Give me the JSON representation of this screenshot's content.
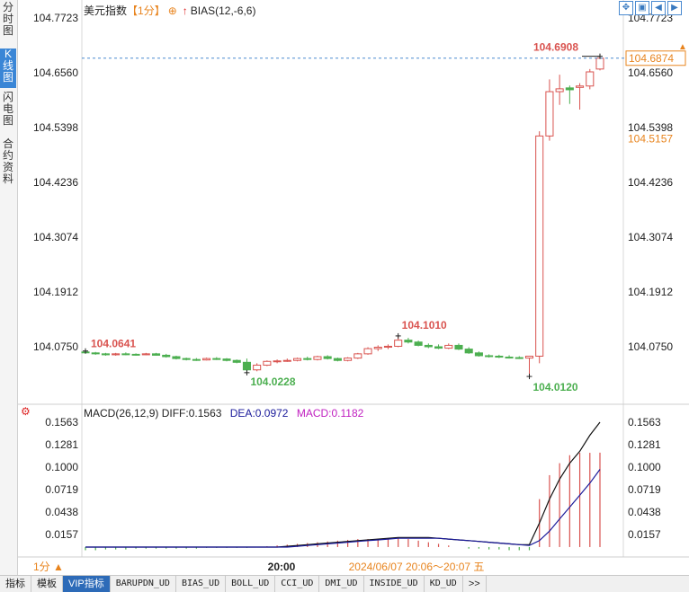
{
  "sidebar": {
    "tabs": [
      {
        "label": "分时图"
      },
      {
        "label": "K线图"
      },
      {
        "label": "闪电图"
      },
      {
        "label": "合约资料"
      }
    ]
  },
  "header": {
    "name": "美元指数",
    "period": "【1分】",
    "circle": "⊕",
    "arrow": "↑",
    "indicator": "BIAS(12,-6,6)"
  },
  "toolbar": {
    "icons": [
      "move-icon",
      "zoom-icon",
      "step-back-icon",
      "step-forward-icon"
    ]
  },
  "macd_header": {
    "title": "MACD(26,12,9)",
    "diff": "DIFF:0.1563",
    "dea": "DEA:0.0972",
    "macd": "MACD:0.1182"
  },
  "price_panel": {
    "y_ticks": [
      "104.7723",
      "104.6560",
      "104.5398",
      "104.4236",
      "104.3074",
      "104.1912",
      "104.0750"
    ],
    "current_price": "104.6874",
    "right_marker": "104.5157",
    "annotations": {
      "max": "104.6908",
      "local_high": "104.1010",
      "left": "104.0641",
      "low_mid": "104.0228",
      "min": "104.0120"
    }
  },
  "macd_panel": {
    "y_ticks": [
      "0.1563",
      "0.1281",
      "0.1000",
      "0.0719",
      "0.0438",
      "0.0157"
    ]
  },
  "x_axis": {
    "time_label": "20:00",
    "range_label": "2024/06/07 20:06～20:07 五"
  },
  "period_button": "1分",
  "bottom_tabs": [
    "指标",
    "模板",
    "VIP指标",
    "BARUPDN_UD",
    "BIAS_UD",
    "BOLL_UD",
    "CCI_UD",
    "DMI_UD",
    "INSIDE_UD",
    "KD_UD",
    ">>"
  ],
  "colors": {
    "up": "#d9534f",
    "down": "#4caf50",
    "accent": "#e8841e",
    "dea": "#1a1a9a",
    "macd": "#c020c0"
  },
  "chart_data": [
    {
      "type": "candlestick",
      "title": "美元指数",
      "ylim": [
        104.0,
        104.7723
      ],
      "candles": [
        {
          "o": 104.064,
          "h": 104.066,
          "l": 104.062,
          "c": 104.063
        },
        {
          "o": 104.062,
          "h": 104.064,
          "l": 104.058,
          "c": 104.06
        },
        {
          "o": 104.06,
          "h": 104.062,
          "l": 104.056,
          "c": 104.058
        },
        {
          "o": 104.058,
          "h": 104.062,
          "l": 104.056,
          "c": 104.06
        },
        {
          "o": 104.06,
          "h": 104.063,
          "l": 104.057,
          "c": 104.059
        },
        {
          "o": 104.059,
          "h": 104.061,
          "l": 104.056,
          "c": 104.058
        },
        {
          "o": 104.058,
          "h": 104.062,
          "l": 104.057,
          "c": 104.06
        },
        {
          "o": 104.06,
          "h": 104.062,
          "l": 104.056,
          "c": 104.057
        },
        {
          "o": 104.057,
          "h": 104.06,
          "l": 104.052,
          "c": 104.054
        },
        {
          "o": 104.054,
          "h": 104.056,
          "l": 104.048,
          "c": 104.05
        },
        {
          "o": 104.05,
          "h": 104.052,
          "l": 104.046,
          "c": 104.048
        },
        {
          "o": 104.048,
          "h": 104.051,
          "l": 104.045,
          "c": 104.047
        },
        {
          "o": 104.047,
          "h": 104.052,
          "l": 104.046,
          "c": 104.05
        },
        {
          "o": 104.05,
          "h": 104.053,
          "l": 104.047,
          "c": 104.049
        },
        {
          "o": 104.049,
          "h": 104.051,
          "l": 104.044,
          "c": 104.046
        },
        {
          "o": 104.046,
          "h": 104.048,
          "l": 104.04,
          "c": 104.042
        },
        {
          "o": 104.042,
          "h": 104.05,
          "l": 104.02,
          "c": 104.026
        },
        {
          "o": 104.026,
          "h": 104.04,
          "l": 104.023,
          "c": 104.036
        },
        {
          "o": 104.036,
          "h": 104.046,
          "l": 104.034,
          "c": 104.044
        },
        {
          "o": 104.044,
          "h": 104.048,
          "l": 104.04,
          "c": 104.045
        },
        {
          "o": 104.045,
          "h": 104.05,
          "l": 104.043,
          "c": 104.046
        },
        {
          "o": 104.046,
          "h": 104.052,
          "l": 104.044,
          "c": 104.05
        },
        {
          "o": 104.05,
          "h": 104.054,
          "l": 104.046,
          "c": 104.048
        },
        {
          "o": 104.048,
          "h": 104.056,
          "l": 104.046,
          "c": 104.054
        },
        {
          "o": 104.054,
          "h": 104.057,
          "l": 104.048,
          "c": 104.05
        },
        {
          "o": 104.05,
          "h": 104.052,
          "l": 104.044,
          "c": 104.046
        },
        {
          "o": 104.046,
          "h": 104.053,
          "l": 104.044,
          "c": 104.051
        },
        {
          "o": 104.051,
          "h": 104.062,
          "l": 104.049,
          "c": 104.06
        },
        {
          "o": 104.06,
          "h": 104.074,
          "l": 104.058,
          "c": 104.071
        },
        {
          "o": 104.071,
          "h": 104.078,
          "l": 104.066,
          "c": 104.074
        },
        {
          "o": 104.074,
          "h": 104.08,
          "l": 104.07,
          "c": 104.076
        },
        {
          "o": 104.076,
          "h": 104.098,
          "l": 104.074,
          "c": 104.089
        },
        {
          "o": 104.089,
          "h": 104.094,
          "l": 104.082,
          "c": 104.085
        },
        {
          "o": 104.085,
          "h": 104.088,
          "l": 104.076,
          "c": 104.078
        },
        {
          "o": 104.078,
          "h": 104.082,
          "l": 104.072,
          "c": 104.075
        },
        {
          "o": 104.075,
          "h": 104.08,
          "l": 104.07,
          "c": 104.072
        },
        {
          "o": 104.072,
          "h": 104.082,
          "l": 104.07,
          "c": 104.078
        },
        {
          "o": 104.078,
          "h": 104.082,
          "l": 104.068,
          "c": 104.07
        },
        {
          "o": 104.07,
          "h": 104.074,
          "l": 104.06,
          "c": 104.062
        },
        {
          "o": 104.062,
          "h": 104.065,
          "l": 104.054,
          "c": 104.056
        },
        {
          "o": 104.056,
          "h": 104.059,
          "l": 104.052,
          "c": 104.055
        },
        {
          "o": 104.055,
          "h": 104.058,
          "l": 104.051,
          "c": 104.053
        },
        {
          "o": 104.053,
          "h": 104.057,
          "l": 104.05,
          "c": 104.052
        },
        {
          "o": 104.052,
          "h": 104.055,
          "l": 104.049,
          "c": 104.051
        },
        {
          "o": 104.051,
          "h": 104.056,
          "l": 104.012,
          "c": 104.055
        },
        {
          "o": 104.055,
          "h": 104.532,
          "l": 104.04,
          "c": 104.522
        },
        {
          "o": 104.522,
          "h": 104.642,
          "l": 104.512,
          "c": 104.616
        },
        {
          "o": 104.616,
          "h": 104.652,
          "l": 104.588,
          "c": 104.622
        },
        {
          "o": 104.624,
          "h": 104.629,
          "l": 104.59,
          "c": 104.62
        },
        {
          "o": 104.625,
          "h": 104.634,
          "l": 104.578,
          "c": 104.628
        },
        {
          "o": 104.628,
          "h": 104.664,
          "l": 104.621,
          "c": 104.658
        },
        {
          "o": 104.664,
          "h": 104.691,
          "l": 104.661,
          "c": 104.687
        }
      ]
    },
    {
      "type": "macd",
      "title": "MACD(26,12,9)",
      "ylim": [
        0,
        0.1563
      ],
      "diff": [
        0.0,
        0.0,
        0.0,
        0.0,
        0.0,
        0.0,
        0.0,
        0.0,
        0.0,
        0.0,
        0.0,
        0.0,
        0.0,
        0.0,
        0.0,
        0.0,
        0.0,
        0.0,
        0.0,
        0.0,
        0.001,
        0.002,
        0.003,
        0.004,
        0.005,
        0.006,
        0.007,
        0.008,
        0.009,
        0.01,
        0.011,
        0.012,
        0.012,
        0.012,
        0.012,
        0.011,
        0.01,
        0.009,
        0.008,
        0.007,
        0.006,
        0.005,
        0.004,
        0.003,
        0.003,
        0.03,
        0.06,
        0.085,
        0.105,
        0.12,
        0.14,
        0.1563
      ],
      "dea": [
        0.0,
        0.0,
        0.0,
        0.0,
        0.0,
        0.0,
        0.0,
        0.0,
        0.0,
        0.0,
        0.0,
        0.0,
        0.0,
        0.0,
        0.0,
        0.0,
        0.0,
        0.0,
        0.0,
        0.0,
        0.0,
        0.001,
        0.002,
        0.003,
        0.004,
        0.005,
        0.006,
        0.007,
        0.008,
        0.009,
        0.01,
        0.011,
        0.011,
        0.011,
        0.011,
        0.011,
        0.01,
        0.009,
        0.008,
        0.007,
        0.006,
        0.005,
        0.004,
        0.003,
        0.002,
        0.008,
        0.02,
        0.035,
        0.05,
        0.065,
        0.08,
        0.0972
      ],
      "macd": [
        -0.004,
        -0.004,
        -0.003,
        -0.003,
        -0.003,
        -0.002,
        -0.002,
        -0.002,
        -0.002,
        -0.002,
        -0.002,
        -0.002,
        -0.001,
        -0.001,
        -0.001,
        -0.001,
        -0.001,
        0.0,
        0.001,
        0.002,
        0.003,
        0.004,
        0.005,
        0.006,
        0.007,
        0.008,
        0.009,
        0.01,
        0.01,
        0.01,
        0.011,
        0.011,
        0.01,
        0.008,
        0.006,
        0.004,
        0.002,
        0.0,
        -0.002,
        -0.002,
        -0.003,
        -0.003,
        -0.004,
        -0.004,
        -0.004,
        0.06,
        0.09,
        0.105,
        0.115,
        0.118,
        0.118,
        0.1182
      ]
    }
  ]
}
